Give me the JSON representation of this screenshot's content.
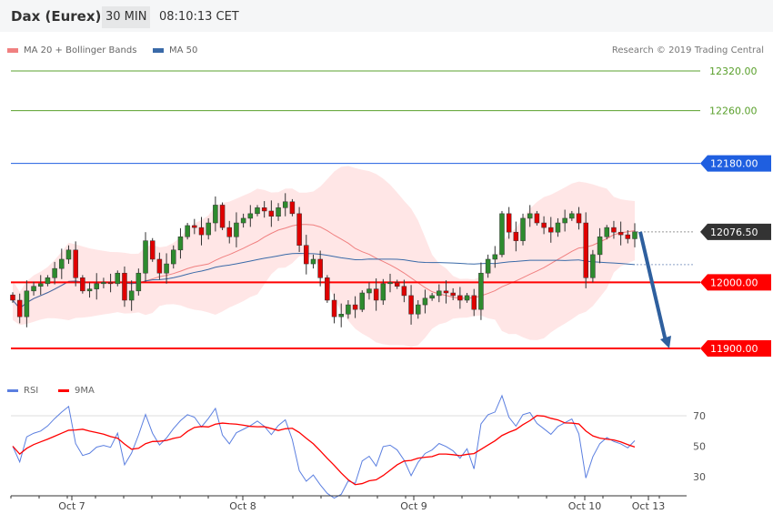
{
  "header": {
    "title": "Dax (Eurex)",
    "timeframe": "30 MIN",
    "time": "08:10:13 CET"
  },
  "legend": {
    "ma20": "MA 20 + Bollinger Bands",
    "ma50": "MA 50",
    "copyright": "Research © 2019 Trading Central",
    "ma20_color": "#f08080",
    "ma50_color": "#3a6aa8"
  },
  "rsi_legend": {
    "rsi": "RSI",
    "ma": "9MA",
    "rsi_color": "#5b7fe0",
    "ma_color": "#ff0000"
  },
  "chart_data": [
    {
      "type": "candlestick",
      "title": "Dax (Eurex)",
      "ylim": [
        11890,
        12330
      ],
      "closes": [
        11973,
        11948,
        11987,
        11994,
        11998,
        12007,
        12021,
        12035,
        12049,
        12007,
        11987,
        11990,
        11998,
        12000,
        11998,
        12014,
        11973,
        11987,
        12014,
        12063,
        12035,
        12014,
        12028,
        12049,
        12069,
        12086,
        12083,
        12072,
        12090,
        12117,
        12083,
        12069,
        12090,
        12097,
        12104,
        12113,
        12108,
        12100,
        12113,
        12122,
        12104,
        12056,
        12028,
        12035,
        12007,
        11973,
        11948,
        11952,
        11966,
        11959,
        11984,
        11990,
        11973,
        11998,
        12000,
        11994,
        11980,
        11952,
        11966,
        11976,
        11980,
        11987,
        11984,
        11980,
        11973,
        11980,
        11959,
        12014,
        12035,
        12042,
        12104,
        12076,
        12063,
        12097,
        12104,
        12090,
        12083,
        12076,
        12090,
        12097,
        12104,
        12090,
        12007,
        12042,
        12069,
        12083,
        12076,
        12072,
        12066,
        12076.5
      ],
      "levels": [
        {
          "label": "12320.00",
          "value": 12320,
          "color": "#5aa02c",
          "style": "resistance"
        },
        {
          "label": "12260.00",
          "value": 12260,
          "color": "#5aa02c",
          "style": "resistance"
        },
        {
          "label": "12180.00",
          "value": 12180,
          "color": "#1f5fe0",
          "style": "pivot"
        },
        {
          "label": "12076.50",
          "value": 12076.5,
          "color": "#333333",
          "style": "last"
        },
        {
          "label": "12000.00",
          "value": 12000,
          "color": "#ff0000",
          "style": "support"
        },
        {
          "label": "11900.00",
          "value": 11900,
          "color": "#ff0000",
          "style": "support"
        }
      ],
      "arrow": {
        "from": 12076.5,
        "to": 11900,
        "direction": "down",
        "color": "#2e5f9e"
      },
      "x_tick_labels": [
        "Oct 7",
        "Oct 8",
        "Oct 9",
        "Oct 10",
        "Oct 13"
      ]
    },
    {
      "type": "line",
      "title": "RSI",
      "y_ticks": [
        70,
        50,
        30
      ],
      "ylim": [
        20,
        80
      ]
    }
  ]
}
